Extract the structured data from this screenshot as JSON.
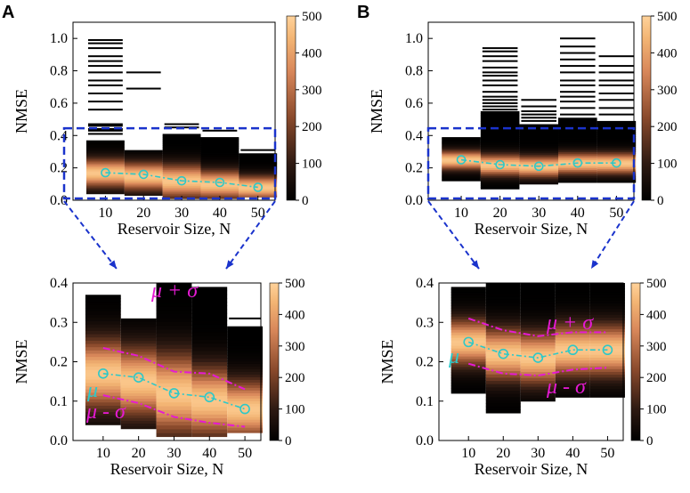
{
  "panels": [
    {
      "letter": "A",
      "xlabel": "Reservoir Size, N",
      "ylabel": "NMSE",
      "categories": [
        10,
        20,
        30,
        40,
        50
      ],
      "top_ylim": [
        0,
        1.1
      ],
      "top_yticks": [
        "0.0",
        "0.2",
        "0.4",
        "0.6",
        "0.8",
        "1.0"
      ],
      "zoom_ylim": [
        0,
        0.4
      ],
      "zoom_yticks": [
        "0.0",
        "0.1",
        "0.2",
        "0.3",
        "0.4"
      ],
      "colorbar_ticks": [
        "0",
        "100",
        "200",
        "300",
        "400",
        "500"
      ],
      "dist": [
        {
          "min": 0.04,
          "max": 0.37,
          "center": 0.17,
          "spread": 0.06
        },
        {
          "min": 0.03,
          "max": 0.31,
          "center": 0.15,
          "spread": 0.06
        },
        {
          "min": 0.01,
          "max": 0.41,
          "center": 0.12,
          "spread": 0.07
        },
        {
          "min": 0.01,
          "max": 0.39,
          "center": 0.1,
          "spread": 0.06
        },
        {
          "min": 0.02,
          "max": 0.29,
          "center": 0.08,
          "spread": 0.05
        }
      ],
      "outliers": [
        [
          0.41,
          0.43,
          0.44,
          0.46,
          0.47,
          0.56,
          0.61,
          0.66,
          0.71,
          0.74,
          0.79,
          0.83,
          0.86,
          0.89,
          0.94,
          0.97,
          0.99
        ],
        [
          0.69,
          0.79
        ],
        [
          0.45,
          0.47
        ],
        [
          0.43
        ],
        [
          0.31
        ]
      ],
      "mean": [
        0.17,
        0.16,
        0.12,
        0.11,
        0.08
      ],
      "upper": [
        0.235,
        0.215,
        0.175,
        0.17,
        0.13
      ],
      "lower": [
        0.115,
        0.095,
        0.06,
        0.045,
        0.035
      ],
      "labels": {
        "mu": "μ",
        "mu_plus": "μ + σ",
        "mu_minus": "μ - σ"
      }
    },
    {
      "letter": "B",
      "xlabel": "Reservoir Size, N",
      "ylabel": "NMSE",
      "categories": [
        10,
        20,
        30,
        40,
        50
      ],
      "top_ylim": [
        0,
        1.1
      ],
      "top_yticks": [
        "0.0",
        "0.2",
        "0.4",
        "0.6",
        "0.8",
        "1.0"
      ],
      "zoom_ylim": [
        0,
        0.4
      ],
      "zoom_yticks": [
        "0.0",
        "0.1",
        "0.2",
        "0.3",
        "0.4"
      ],
      "colorbar_ticks": [
        "0",
        "100",
        "200",
        "300",
        "400",
        "500"
      ],
      "dist": [
        {
          "min": 0.12,
          "max": 0.39,
          "center": 0.25,
          "spread": 0.04
        },
        {
          "min": 0.07,
          "max": 0.55,
          "center": 0.22,
          "spread": 0.045
        },
        {
          "min": 0.1,
          "max": 0.47,
          "center": 0.21,
          "spread": 0.045
        },
        {
          "min": 0.11,
          "max": 0.51,
          "center": 0.23,
          "spread": 0.045
        },
        {
          "min": 0.11,
          "max": 0.49,
          "center": 0.23,
          "spread": 0.045
        }
      ],
      "outliers": [
        [],
        [
          0.56,
          0.58,
          0.6,
          0.62,
          0.64,
          0.67,
          0.71,
          0.74,
          0.77,
          0.79,
          0.82,
          0.86,
          0.89,
          0.92,
          0.94
        ],
        [
          0.49,
          0.51,
          0.53,
          0.55,
          0.58,
          0.62
        ],
        [
          0.53,
          0.57,
          0.61,
          0.64,
          0.67,
          0.71,
          0.74,
          0.79,
          0.83,
          0.87,
          0.91,
          0.95,
          1.0
        ],
        [
          0.53,
          0.57,
          0.62,
          0.66,
          0.71,
          0.74,
          0.79,
          0.83,
          0.89
        ]
      ],
      "mean": [
        0.25,
        0.22,
        0.21,
        0.23,
        0.23
      ],
      "upper": [
        0.31,
        0.28,
        0.265,
        0.275,
        0.275
      ],
      "lower": [
        0.195,
        0.17,
        0.165,
        0.18,
        0.185
      ],
      "labels": {
        "mu": "μ",
        "mu_plus": "μ + σ",
        "mu_minus": "μ - σ"
      }
    }
  ],
  "colors": {
    "mean_line": "#2ec8c8",
    "sigma_line": "#e51ad3",
    "zoom_box": "#1a33cc",
    "arrow": "#1a33cc"
  },
  "chart_data": [
    {
      "type": "heatmap",
      "title": "A",
      "xlabel": "Reservoir Size, N",
      "ylabel": "NMSE",
      "categories": [
        10,
        20,
        30,
        40,
        50
      ],
      "ylim": [
        0,
        1.1
      ],
      "zoom_ylim": [
        0,
        0.4
      ],
      "colorbar_range": [
        0,
        500
      ],
      "series": [
        {
          "name": "μ",
          "values": [
            0.17,
            0.16,
            0.12,
            0.11,
            0.08
          ]
        },
        {
          "name": "μ + σ",
          "values": [
            0.235,
            0.215,
            0.175,
            0.17,
            0.13
          ]
        },
        {
          "name": "μ - σ",
          "values": [
            0.115,
            0.095,
            0.06,
            0.045,
            0.035
          ]
        }
      ]
    },
    {
      "type": "heatmap",
      "title": "B",
      "xlabel": "Reservoir Size, N",
      "ylabel": "NMSE",
      "categories": [
        10,
        20,
        30,
        40,
        50
      ],
      "ylim": [
        0,
        1.1
      ],
      "zoom_ylim": [
        0,
        0.4
      ],
      "colorbar_range": [
        0,
        500
      ],
      "series": [
        {
          "name": "μ",
          "values": [
            0.25,
            0.22,
            0.21,
            0.23,
            0.23
          ]
        },
        {
          "name": "μ + σ",
          "values": [
            0.31,
            0.28,
            0.265,
            0.275,
            0.275
          ]
        },
        {
          "name": "μ - σ",
          "values": [
            0.195,
            0.17,
            0.165,
            0.18,
            0.185
          ]
        }
      ]
    }
  ]
}
